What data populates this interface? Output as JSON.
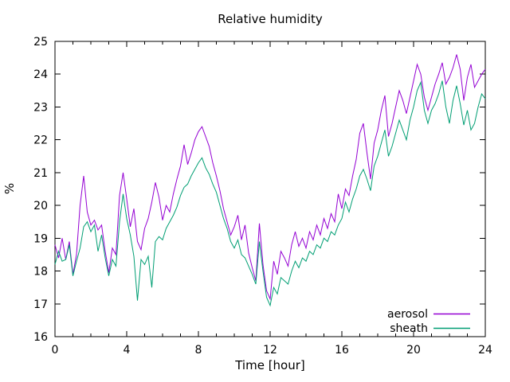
{
  "page": {
    "background": "#ffffff",
    "text_color": "#000000",
    "axis_color": "#000000"
  },
  "chart_data": {
    "type": "line",
    "title": "Relative humidity",
    "xlabel": "Time [hour]",
    "ylabel": "%",
    "xlim": [
      0,
      24
    ],
    "ylim": [
      16,
      25
    ],
    "xticks": [
      0,
      4,
      8,
      12,
      16,
      20,
      24
    ],
    "minor_xtick_step": 1,
    "yticks": [
      16,
      17,
      18,
      19,
      20,
      21,
      22,
      23,
      24,
      25
    ],
    "grid": false,
    "legend_position": "inside bottom-right",
    "x_start": 0,
    "x_step": 0.2,
    "series": [
      {
        "name": "aerosol",
        "color": "#9400d3",
        "values": [
          18.8,
          18.4,
          19.0,
          18.35,
          18.9,
          17.9,
          18.5,
          20.0,
          20.9,
          19.8,
          19.4,
          19.55,
          19.25,
          19.4,
          18.6,
          17.95,
          18.7,
          18.5,
          20.3,
          21.0,
          20.2,
          19.35,
          19.9,
          18.9,
          18.65,
          19.3,
          19.6,
          20.1,
          20.7,
          20.25,
          19.55,
          20.0,
          19.8,
          20.35,
          20.8,
          21.2,
          21.85,
          21.25,
          21.6,
          22.0,
          22.25,
          22.4,
          22.1,
          21.8,
          21.3,
          20.9,
          20.45,
          19.9,
          19.5,
          19.1,
          19.35,
          19.7,
          18.95,
          19.4,
          18.55,
          18.1,
          17.7,
          19.45,
          18.2,
          17.4,
          17.15,
          18.3,
          17.9,
          18.6,
          18.4,
          18.15,
          18.8,
          19.2,
          18.75,
          19.0,
          18.7,
          19.2,
          18.95,
          19.4,
          19.1,
          19.6,
          19.3,
          19.75,
          19.5,
          20.35,
          19.9,
          20.5,
          20.3,
          20.9,
          21.4,
          22.2,
          22.5,
          21.6,
          20.8,
          21.9,
          22.3,
          22.9,
          23.35,
          22.1,
          22.5,
          23.0,
          23.5,
          23.2,
          22.8,
          23.3,
          23.8,
          24.3,
          24.0,
          23.3,
          22.9,
          23.3,
          23.7,
          24.0,
          24.35,
          23.7,
          23.9,
          24.2,
          24.6,
          24.15,
          23.2,
          23.9,
          24.3,
          23.6,
          23.8,
          24.0,
          24.15
        ]
      },
      {
        "name": "sheath",
        "color": "#009e73",
        "values": [
          18.2,
          18.6,
          18.3,
          18.35,
          18.8,
          17.85,
          18.3,
          18.7,
          19.35,
          19.5,
          19.2,
          19.4,
          18.6,
          19.1,
          18.4,
          17.85,
          18.35,
          18.15,
          19.5,
          20.35,
          19.6,
          19.1,
          18.45,
          17.1,
          18.35,
          18.2,
          18.45,
          17.5,
          18.9,
          19.05,
          18.95,
          19.3,
          19.5,
          19.7,
          19.95,
          20.3,
          20.55,
          20.65,
          20.9,
          21.1,
          21.3,
          21.45,
          21.15,
          20.95,
          20.65,
          20.4,
          20.0,
          19.6,
          19.3,
          18.9,
          18.7,
          18.95,
          18.5,
          18.4,
          18.15,
          17.9,
          17.6,
          18.9,
          18.0,
          17.2,
          16.95,
          17.5,
          17.3,
          17.8,
          17.7,
          17.6,
          18.0,
          18.3,
          18.1,
          18.4,
          18.3,
          18.6,
          18.5,
          18.8,
          18.7,
          19.0,
          18.9,
          19.2,
          19.1,
          19.4,
          19.6,
          20.1,
          19.8,
          20.2,
          20.5,
          20.9,
          21.1,
          20.8,
          20.45,
          21.2,
          21.5,
          21.9,
          22.3,
          21.5,
          21.8,
          22.2,
          22.6,
          22.3,
          22.0,
          22.6,
          23.0,
          23.5,
          23.75,
          22.9,
          22.5,
          22.9,
          23.1,
          23.4,
          23.8,
          23.0,
          22.5,
          23.2,
          23.65,
          23.1,
          22.45,
          22.9,
          22.3,
          22.5,
          23.0,
          23.4,
          23.25
        ]
      }
    ]
  }
}
